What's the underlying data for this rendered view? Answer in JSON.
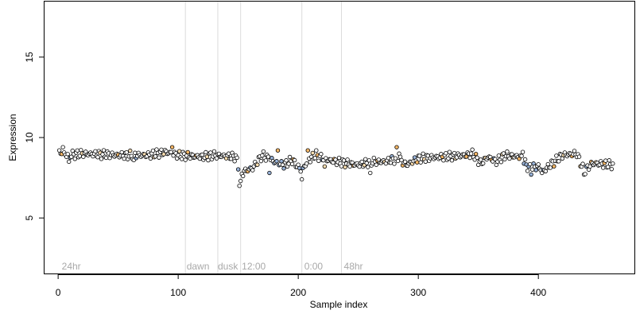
{
  "chart_data": {
    "type": "scatter",
    "title": "",
    "xlabel": "Sample index",
    "ylabel": "Expression",
    "xlim": [
      -12,
      480
    ],
    "ylim": [
      1.5,
      18.5
    ],
    "x_ticks": [
      0,
      100,
      200,
      300,
      400
    ],
    "y_ticks": [
      5,
      10,
      15
    ],
    "grid": false,
    "legend": "none",
    "colors": {
      "default": "#ffffff",
      "light": "#fde0b2",
      "orange": "#f5b767",
      "blue": "#9ab4da",
      "annotation": "#a8a8a8",
      "vline": "#dcdcdc"
    },
    "vlines": [
      106,
      133,
      152,
      203,
      236
    ],
    "annotations": [
      {
        "x": 3,
        "text": "24hr"
      },
      {
        "x": 107,
        "text": "dawn"
      },
      {
        "x": 133,
        "text": "dusk"
      },
      {
        "x": 153,
        "text": "12:00"
      },
      {
        "x": 205,
        "text": "0:00"
      },
      {
        "x": 238,
        "text": "48hr"
      }
    ],
    "annotation_y": 2,
    "n_points": 462,
    "anchors": [
      [
        1,
        9.1
      ],
      [
        8,
        8.9
      ],
      [
        20,
        9.0
      ],
      [
        50,
        8.9
      ],
      [
        75,
        8.9
      ],
      [
        90,
        9.1
      ],
      [
        100,
        8.9
      ],
      [
        120,
        8.8
      ],
      [
        130,
        8.9
      ],
      [
        148,
        8.8
      ],
      [
        152,
        7.6
      ],
      [
        155,
        7.9
      ],
      [
        162,
        8.1
      ],
      [
        170,
        8.9
      ],
      [
        180,
        8.5
      ],
      [
        188,
        8.3
      ],
      [
        195,
        8.6
      ],
      [
        203,
        7.9
      ],
      [
        208,
        8.6
      ],
      [
        214,
        8.9
      ],
      [
        225,
        8.6
      ],
      [
        240,
        8.4
      ],
      [
        250,
        8.3
      ],
      [
        262,
        8.5
      ],
      [
        272,
        8.5
      ],
      [
        283,
        8.7
      ],
      [
        290,
        8.3
      ],
      [
        300,
        8.7
      ],
      [
        320,
        8.8
      ],
      [
        340,
        8.9
      ],
      [
        345,
        9.0
      ],
      [
        352,
        8.4
      ],
      [
        358,
        8.8
      ],
      [
        365,
        8.5
      ],
      [
        372,
        8.9
      ],
      [
        385,
        8.8
      ],
      [
        392,
        8.1
      ],
      [
        400,
        8.2
      ],
      [
        404,
        7.9
      ],
      [
        410,
        8.3
      ],
      [
        420,
        8.9
      ],
      [
        432,
        9.0
      ],
      [
        438,
        7.9
      ],
      [
        445,
        8.4
      ],
      [
        462,
        8.3
      ]
    ],
    "spikes": [
      [
        4,
        9.4
      ],
      [
        9,
        8.5
      ],
      [
        63,
        8.6
      ],
      [
        95,
        9.4
      ],
      [
        151,
        7.0
      ],
      [
        152,
        7.3
      ],
      [
        176,
        7.8
      ],
      [
        183,
        9.2
      ],
      [
        203,
        7.4
      ],
      [
        208,
        9.2
      ],
      [
        215,
        9.2
      ],
      [
        222,
        8.2
      ],
      [
        260,
        7.8
      ],
      [
        282,
        9.4
      ],
      [
        284,
        9.0
      ],
      [
        387,
        9.1
      ],
      [
        394,
        7.7
      ],
      [
        403,
        7.8
      ],
      [
        438,
        7.7
      ]
    ],
    "orange_points": [
      3,
      50,
      95,
      108,
      115,
      158,
      183,
      196,
      208,
      216,
      230,
      246,
      266,
      282,
      287,
      299,
      320,
      340,
      348,
      361,
      384,
      413,
      428,
      444,
      455
    ],
    "light_points": [
      20,
      35,
      60,
      72,
      80,
      88,
      101,
      124,
      140,
      166,
      212,
      222,
      239,
      255,
      272,
      295,
      305,
      331,
      356,
      370,
      379,
      421,
      435,
      448
    ],
    "blue_points": [
      10,
      65,
      150,
      160,
      176,
      178,
      180,
      182,
      184,
      186,
      188,
      201,
      204,
      220,
      278,
      297,
      363,
      388,
      390,
      392,
      394,
      396,
      398,
      404,
      440
    ]
  }
}
